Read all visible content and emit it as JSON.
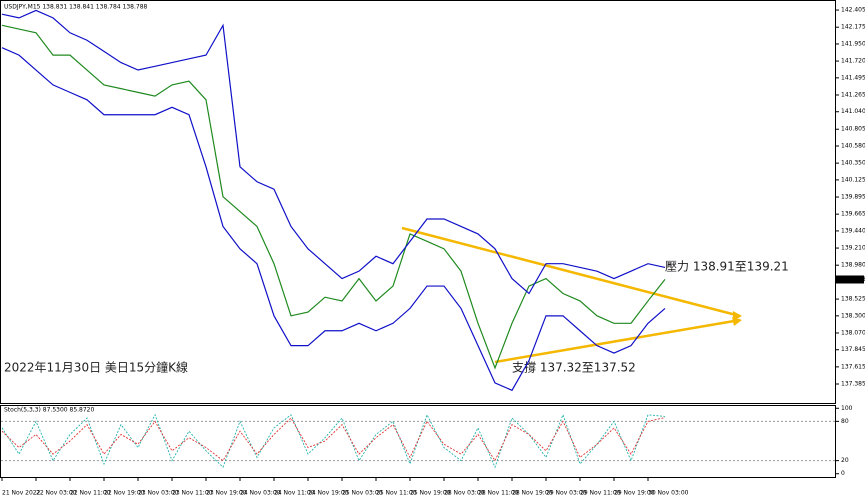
{
  "chart_data": [
    {
      "type": "line",
      "title": "USDJPY,M15 138.831 138.841 138.784 138.788",
      "annotations": [
        "壓力 138.91至139.21",
        "支撐 137.32至137.52",
        "2022年11月30日 美日15分鐘K線"
      ],
      "current_price": 138.788,
      "categories": [
        "21 Nov 2022",
        null,
        "22 Nov 03:00",
        null,
        "22 Nov 11:00",
        null,
        "22 Nov 19:00",
        null,
        "23 Nov 03:00",
        null,
        "23 Nov 11:00",
        null,
        "23 Nov 19:00",
        null,
        "24 Nov 03:00",
        null,
        "24 Nov 11:00",
        null,
        "24 Nov 19:00",
        null,
        "25 Nov 03:00",
        null,
        "25 Nov 11:00",
        null,
        "25 Nov 19:00",
        null,
        "28 Nov 03:00",
        null,
        "28 Nov 11:00",
        null,
        "28 Nov 19:00",
        null,
        "29 Nov 03:00",
        null,
        "29 Nov 11:00",
        null,
        "29 Nov 19:00",
        null,
        "30 Nov 03:00",
        null
      ],
      "series": [
        {
          "color": "#1f8a1f",
          "values": [
            142.2,
            142.15,
            142.1,
            141.8,
            141.8,
            141.6,
            141.4,
            141.35,
            141.3,
            141.25,
            141.4,
            141.45,
            141.2,
            139.9,
            139.7,
            139.5,
            139.0,
            138.3,
            138.35,
            138.55,
            138.5,
            138.8,
            138.5,
            138.7,
            139.4,
            139.3,
            139.2,
            138.9,
            138.2,
            137.6,
            138.2,
            138.7,
            138.8,
            138.6,
            138.5,
            138.3,
            138.2,
            138.2,
            138.5,
            138.79
          ]
        },
        {
          "color": "#1010c8",
          "values": [
            142.35,
            142.3,
            142.4,
            142.3,
            142.1,
            142.0,
            141.85,
            141.7,
            141.6,
            141.65,
            141.7,
            141.75,
            141.8,
            142.2,
            140.3,
            140.1,
            140.0,
            139.5,
            139.2,
            139.0,
            138.8,
            138.9,
            139.1,
            139.0,
            139.3,
            139.6,
            139.6,
            139.5,
            139.4,
            139.2,
            138.8,
            138.6,
            139.0,
            139.0,
            138.95,
            138.9,
            138.8,
            138.9,
            139.0,
            138.95
          ]
        },
        {
          "color": "#1010c8",
          "values": [
            141.9,
            141.8,
            141.6,
            141.4,
            141.3,
            141.2,
            141.0,
            141.0,
            141.0,
            141.0,
            141.1,
            141.0,
            140.3,
            139.5,
            139.2,
            139.0,
            138.3,
            137.9,
            137.9,
            138.1,
            138.1,
            138.2,
            138.1,
            138.2,
            138.4,
            138.7,
            138.7,
            138.4,
            137.9,
            137.4,
            137.3,
            137.7,
            138.3,
            138.3,
            138.1,
            137.9,
            137.8,
            137.9,
            138.2,
            138.4
          ]
        }
      ],
      "ylim": [
        137.13,
        142.54
      ],
      "yticks": [
        142.405,
        142.175,
        {
          "value": 141.95,
          "label": "141.950"
        },
        {
          "value": 141.72,
          "label": "141.720"
        },
        141.495,
        141.265,
        {
          "value": 141.04,
          "label": "141.040"
        },
        140.805,
        {
          "value": 140.58,
          "label": "140.580"
        },
        {
          "value": 140.35,
          "label": "140.350"
        },
        140.125,
        139.895,
        139.665,
        {
          "value": 139.44,
          "label": "139.440"
        },
        {
          "value": 139.21,
          "label": "139.210"
        },
        {
          "value": 138.98,
          "label": "138.980"
        },
        138.525,
        {
          "value": 138.3,
          "label": "138.300"
        },
        {
          "value": 138.07,
          "label": "138.070"
        },
        137.845,
        137.615,
        137.385
      ]
    },
    {
      "type": "line",
      "title": "Stoch(5,3,3) 87.5300 85.8720",
      "series": [
        {
          "color": "#20b2aa",
          "values": [
            70,
            30,
            80,
            20,
            60,
            85,
            15,
            75,
            40,
            90,
            20,
            65,
            35,
            10,
            80,
            25,
            70,
            90,
            30,
            55,
            85,
            20,
            60,
            80,
            15,
            90,
            40,
            20,
            70,
            10,
            85,
            60,
            25,
            90,
            15,
            45,
            80,
            20,
            90,
            87.53
          ]
        },
        {
          "color": "#e03030",
          "values": [
            65,
            40,
            60,
            30,
            50,
            75,
            30,
            60,
            45,
            80,
            35,
            55,
            40,
            20,
            65,
            30,
            60,
            85,
            40,
            50,
            75,
            30,
            55,
            75,
            25,
            80,
            45,
            30,
            60,
            20,
            75,
            60,
            35,
            80,
            25,
            45,
            70,
            30,
            80,
            85.872
          ]
        }
      ],
      "ylim": [
        -5,
        105
      ],
      "yticks": [
        0,
        20,
        80,
        100
      ]
    }
  ]
}
